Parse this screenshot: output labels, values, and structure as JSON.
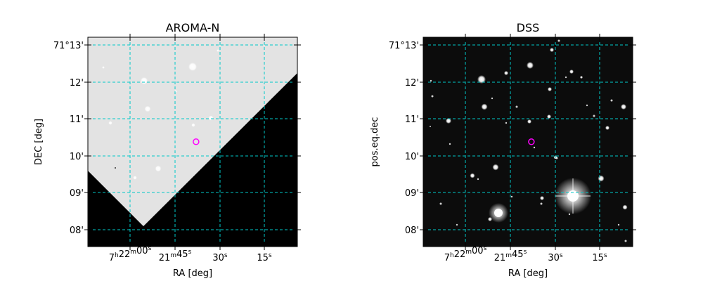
{
  "chart_data": [
    {
      "type": "image",
      "title": "AROMA-N",
      "xlabel": "RA [deg]",
      "ylabel": "DEC [deg]",
      "xticks": [
        {
          "main": "7",
          "mu": "h",
          "mm": "22",
          "su": "m",
          "ss": "00",
          "s": "s"
        },
        {
          "main": "",
          "mu": "",
          "mm": "21",
          "su": "m",
          "ss": "45",
          "s": "s"
        },
        {
          "main": "",
          "mu": "",
          "mm": "",
          "su": "",
          "ss": "30",
          "s": "s"
        },
        {
          "main": "",
          "mu": "",
          "mm": "",
          "su": "",
          "ss": "15",
          "s": "s"
        }
      ],
      "yticks": [
        "71°13'",
        "12'",
        "11'",
        "10'",
        "09'",
        "08'"
      ],
      "grid": true,
      "grid_color": "#00c8c8",
      "marker": {
        "shape": "circle",
        "color": "#ff00ff",
        "ra_s": 38,
        "dec_min": 10.4
      },
      "background": "light"
    },
    {
      "type": "image",
      "title": "DSS",
      "xlabel": "RA [deg]",
      "ylabel": "pos.eq.dec",
      "xticks": [
        {
          "main": "7",
          "mu": "h",
          "mm": "22",
          "su": "m",
          "ss": "00",
          "s": "s"
        },
        {
          "main": "",
          "mu": "",
          "mm": "21",
          "su": "m",
          "ss": "45",
          "s": "s"
        },
        {
          "main": "",
          "mu": "",
          "mm": "",
          "su": "",
          "ss": "30",
          "s": "s"
        },
        {
          "main": "",
          "mu": "",
          "mm": "",
          "su": "",
          "ss": "15",
          "s": "s"
        }
      ],
      "yticks": [
        "71°13'",
        "12'",
        "11'",
        "10'",
        "09'",
        "08'"
      ],
      "grid": true,
      "grid_color": "#00c8c8",
      "marker": {
        "shape": "circle",
        "color": "#ff00ff",
        "ra_s": 38,
        "dec_min": 10.4
      },
      "background": "dark"
    }
  ]
}
